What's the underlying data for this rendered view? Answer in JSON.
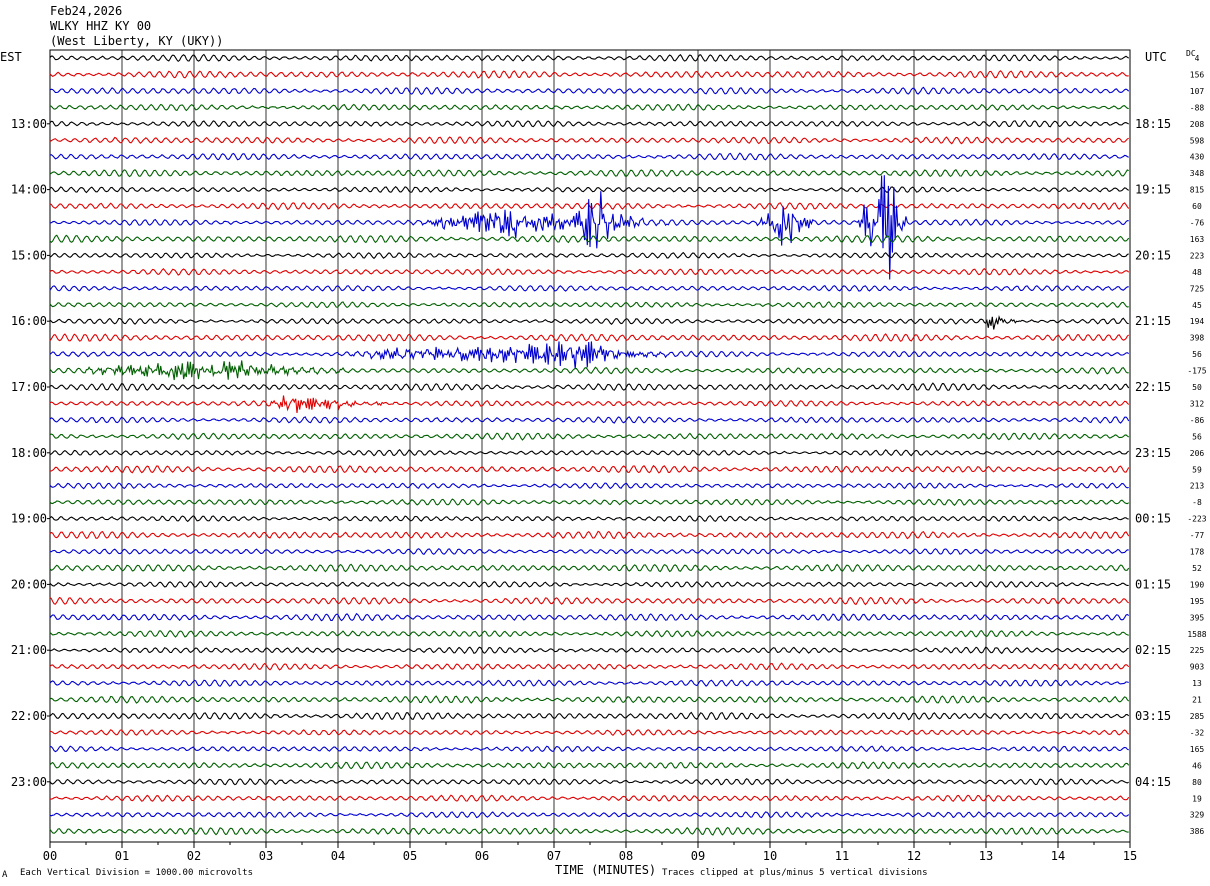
{
  "header": {
    "date": "Feb24,2026",
    "station": "WLKY HHZ KY 00",
    "location": "(West Liberty, KY (UKY))"
  },
  "left_tz": "EST",
  "right_tz": "UTC",
  "dc_label": "DC",
  "footer": {
    "scale_note": "Each Vertical Division = 1000.00 microvolts",
    "clip_note": "Traces clipped at plus/minus 5 vertical divisions",
    "xlabel": "TIME (MINUTES)",
    "corner_mark": "A"
  },
  "colors": {
    "trace_cycle": [
      "#000000",
      "#e00000",
      "#0000d0",
      "#006000"
    ],
    "grid": "#000000"
  },
  "chart_data": {
    "type": "line",
    "description_of_axes": "helicorder",
    "x_ticks": [
      "00",
      "01",
      "02",
      "03",
      "04",
      "05",
      "06",
      "07",
      "08",
      "09",
      "10",
      "11",
      "12",
      "13",
      "14",
      "15"
    ],
    "xlim": [
      0,
      15
    ],
    "rows": 48,
    "left_hour_labels": [
      "13:00",
      "14:00",
      "15:00",
      "16:00",
      "17:00",
      "18:00",
      "19:00",
      "20:00",
      "21:00",
      "22:00",
      "23:00"
    ],
    "right_hour_labels": [
      "18:15",
      "19:15",
      "20:15",
      "21:15",
      "22:15",
      "23:15",
      "00:15",
      "01:15",
      "02:15",
      "03:15",
      "04:15"
    ],
    "hour_label_first_row": 4,
    "rows_per_hour": 4,
    "dc_offsets": [
      "4",
      "156",
      "107",
      "-88",
      "208",
      "598",
      "430",
      "348",
      "815",
      "60",
      "-76",
      "163",
      "223",
      "48",
      "725",
      "45",
      "194",
      "398",
      "56",
      "-175",
      "50",
      "312",
      "-86",
      "56",
      "206",
      "59",
      "213",
      "-8",
      "-223",
      "-77",
      "178",
      "52",
      "190",
      "195",
      "395",
      "1588",
      "225",
      "903",
      "13",
      "21",
      "285",
      "-32",
      "165",
      "46",
      "80",
      "19",
      "329",
      "386"
    ],
    "events": [
      {
        "row": 10,
        "start_min": 5.0,
        "end_min": 8.6,
        "peak_min": 6.6,
        "amp": 1.3
      },
      {
        "row": 10,
        "start_min": 7.2,
        "end_min": 8.3,
        "peak_min": 7.6,
        "amp": 2.4
      },
      {
        "row": 10,
        "start_min": 9.8,
        "end_min": 10.6,
        "peak_min": 10.3,
        "amp": 2.4
      },
      {
        "row": 10,
        "start_min": 11.2,
        "end_min": 11.9,
        "peak_min": 11.65,
        "amp": 5.0
      },
      {
        "row": 18,
        "start_min": 3.8,
        "end_min": 8.6,
        "peak_min": 7.5,
        "amp": 0.9
      },
      {
        "row": 19,
        "start_min": 0.3,
        "end_min": 4.2,
        "peak_min": 2.4,
        "amp": 0.8
      },
      {
        "row": 21,
        "start_min": 3.0,
        "end_min": 4.9,
        "peak_min": 3.5,
        "amp": 0.7
      },
      {
        "row": 16,
        "start_min": 12.9,
        "end_min": 13.5,
        "peak_min": 13.1,
        "amp": 0.8
      }
    ]
  }
}
